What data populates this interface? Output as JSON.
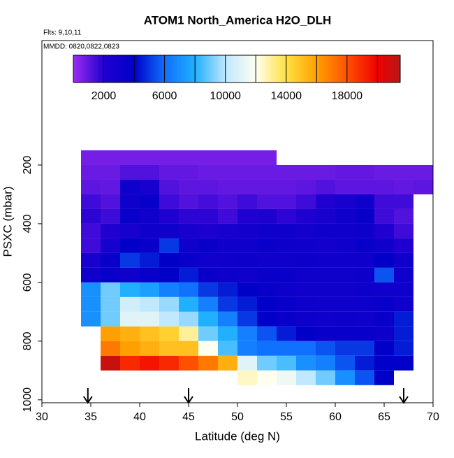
{
  "chart_data": {
    "type": "heatmap",
    "title": "ATOM1 North_America H2O_DLH",
    "annotations": [
      "Flts: 9,10,11",
      "MMDD: 0820,0822,0823"
    ],
    "xlabel": "Latitude (deg N)",
    "ylabel": "PSXC (mbar)",
    "xlim": [
      30,
      70
    ],
    "xticks": [
      30,
      35,
      40,
      45,
      50,
      55,
      60,
      65,
      70
    ],
    "ylim": [
      1010,
      -224
    ],
    "yticks": [
      200,
      400,
      600,
      800,
      1000
    ],
    "x_edges": [
      34,
      36,
      38,
      40,
      42,
      44,
      46,
      48,
      50,
      52,
      54,
      56,
      58,
      60,
      62,
      64,
      66,
      68,
      70
    ],
    "y_edges": [
      150,
      200,
      250,
      300,
      350,
      400,
      450,
      500,
      550,
      600,
      650,
      700,
      750,
      800,
      850,
      900,
      950
    ],
    "values": [
      [
        600,
        600,
        600,
        600,
        600,
        600,
        600,
        600,
        600,
        600,
        null,
        null,
        null,
        null,
        null,
        null,
        null,
        null
      ],
      [
        800,
        800,
        1200,
        1200,
        900,
        900,
        800,
        800,
        800,
        800,
        800,
        800,
        800,
        900,
        900,
        800,
        800,
        800
      ],
      [
        1000,
        900,
        3000,
        2500,
        1200,
        1000,
        1000,
        900,
        900,
        900,
        900,
        1000,
        1200,
        1000,
        1000,
        1000,
        900,
        1000
      ],
      [
        1500,
        1200,
        3000,
        3500,
        1500,
        1200,
        1400,
        1200,
        1500,
        1200,
        1200,
        1500,
        2000,
        2500,
        3000,
        1500,
        1500,
        null
      ],
      [
        1800,
        1500,
        3500,
        3000,
        2000,
        1800,
        1800,
        1500,
        2000,
        2200,
        1800,
        2000,
        2500,
        3000,
        3500,
        1500,
        1200,
        null
      ],
      [
        1500,
        2000,
        2500,
        3000,
        3000,
        2500,
        2200,
        2500,
        2800,
        3000,
        3000,
        2800,
        3000,
        3000,
        3200,
        2000,
        1500,
        null
      ],
      [
        1500,
        2500,
        4000,
        3500,
        5000,
        3000,
        3500,
        3000,
        3000,
        3500,
        3200,
        3000,
        2800,
        3000,
        3500,
        3000,
        2000,
        null
      ],
      [
        2500,
        3500,
        5000,
        4500,
        4000,
        3500,
        3000,
        3000,
        3200,
        3000,
        3000,
        3200,
        3000,
        3000,
        3000,
        4000,
        3000,
        null
      ],
      [
        3000,
        3500,
        3000,
        3500,
        4000,
        4500,
        3500,
        3200,
        3000,
        3500,
        3500,
        3000,
        3000,
        3000,
        3200,
        5500,
        3000,
        null
      ],
      [
        7000,
        9000,
        8000,
        7500,
        6500,
        6000,
        5000,
        4500,
        4000,
        3500,
        3200,
        3000,
        3000,
        3000,
        3200,
        3000,
        3000,
        null
      ],
      [
        7000,
        9000,
        10500,
        10000,
        9500,
        8000,
        6500,
        5000,
        4500,
        4000,
        3500,
        3200,
        3000,
        3000,
        3200,
        3500,
        3000,
        null
      ],
      [
        7000,
        9000,
        11000,
        11000,
        10000,
        9500,
        8000,
        6500,
        5000,
        4000,
        3500,
        3200,
        3000,
        3200,
        3000,
        3500,
        4500,
        null
      ],
      [
        null,
        16000,
        15500,
        15000,
        14500,
        13000,
        9000,
        8000,
        6500,
        5500,
        4500,
        4000,
        3500,
        3500,
        3500,
        3200,
        4500,
        null
      ],
      [
        null,
        17000,
        16000,
        15500,
        15000,
        15000,
        12000,
        8500,
        6500,
        6000,
        6000,
        6000,
        5500,
        5000,
        5000,
        4000,
        4500,
        null
      ],
      [
        null,
        21000,
        19000,
        19500,
        19000,
        18000,
        17000,
        15500,
        11000,
        9000,
        8500,
        7000,
        6500,
        5500,
        4500,
        4000,
        4000,
        null
      ],
      [
        null,
        null,
        null,
        null,
        null,
        null,
        null,
        null,
        12500,
        12000,
        11500,
        10000,
        9000,
        7000,
        5500,
        4000,
        null,
        null
      ]
    ],
    "colorbar_lim": [
      0,
      21500
    ],
    "colorbar_ticks": [
      2000,
      6000,
      10000,
      14000,
      18000
    ],
    "color_stops": [
      0,
      2000,
      4000,
      6000,
      8000,
      10000,
      12000,
      14000,
      16000,
      18000,
      20000,
      22000
    ],
    "colors": [
      "#9a2cf0",
      "#2000d0",
      "#0000c8",
      "#1070ff",
      "#20b0ff",
      "#c0e8ff",
      "#fffff0",
      "#ffe040",
      "#ffa000",
      "#ff5000",
      "#f00000",
      "#a02020"
    ],
    "arrows": [
      34.7,
      45,
      67
    ]
  }
}
